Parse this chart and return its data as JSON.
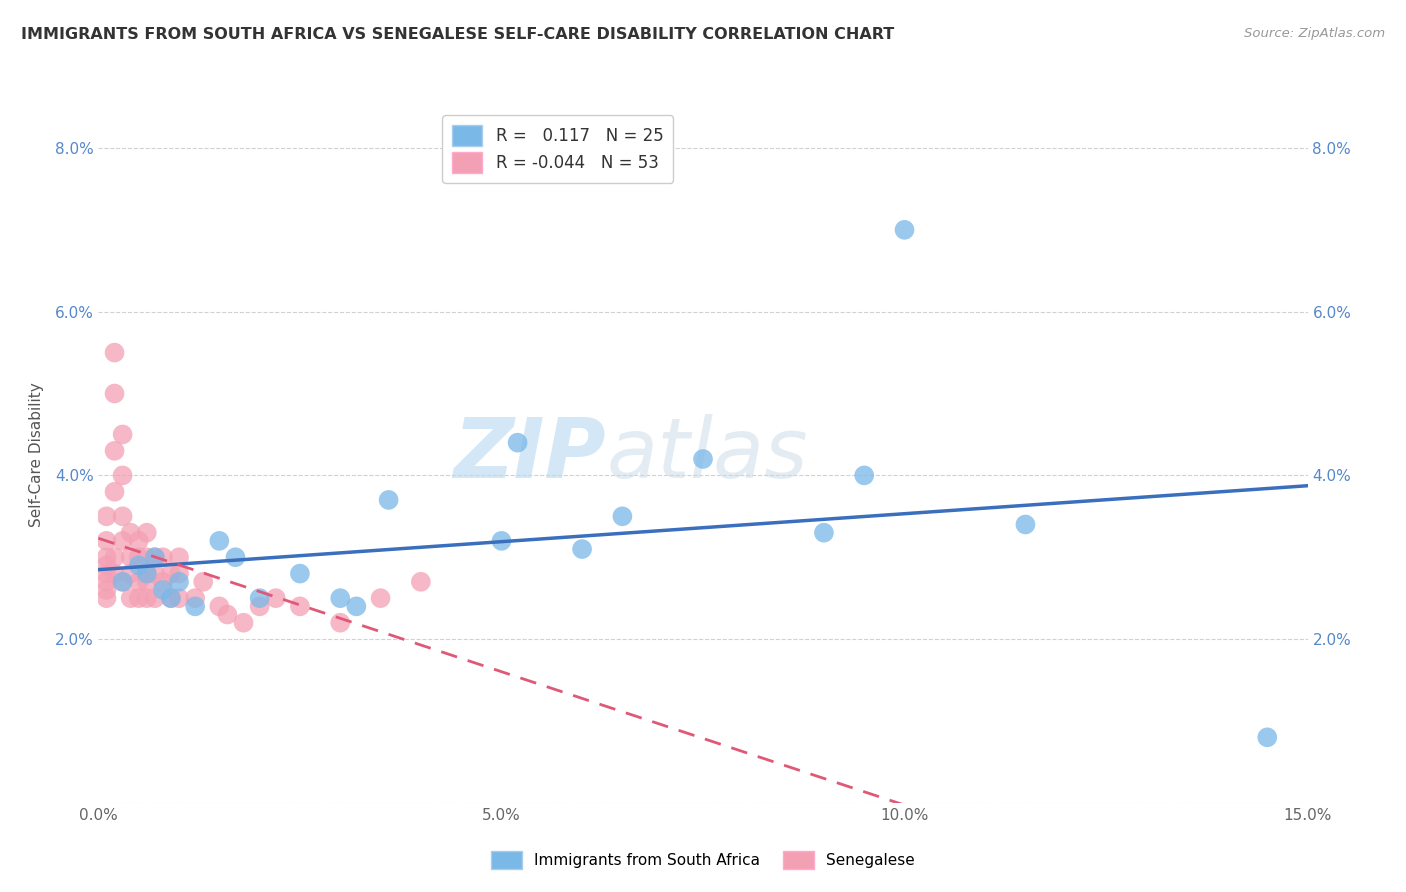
{
  "title": "IMMIGRANTS FROM SOUTH AFRICA VS SENEGALESE SELF-CARE DISABILITY CORRELATION CHART",
  "source": "Source: ZipAtlas.com",
  "ylabel": "Self-Care Disability",
  "xlim": [
    0.0,
    0.15
  ],
  "ylim": [
    0.0,
    0.085
  ],
  "xticks": [
    0.0,
    0.05,
    0.1,
    0.15
  ],
  "xtick_labels": [
    "0.0%",
    "5.0%",
    "10.0%",
    "15.0%"
  ],
  "yticks": [
    0.0,
    0.02,
    0.04,
    0.06,
    0.08
  ],
  "ytick_labels": [
    "",
    "2.0%",
    "4.0%",
    "6.0%",
    "8.0%"
  ],
  "r_blue": 0.117,
  "n_blue": 25,
  "r_pink": -0.044,
  "n_pink": 53,
  "blue_color": "#7ab8e8",
  "pink_color": "#f4a0b4",
  "blue_line_color": "#3a6fbe",
  "pink_line_color": "#e05878",
  "legend_label_blue": "Immigrants from South Africa",
  "legend_label_pink": "Senegalese",
  "watermark_zip": "ZIP",
  "watermark_atlas": "atlas",
  "blue_x": [
    0.003,
    0.005,
    0.006,
    0.007,
    0.008,
    0.009,
    0.01,
    0.012,
    0.015,
    0.017,
    0.02,
    0.025,
    0.03,
    0.032,
    0.036,
    0.05,
    0.052,
    0.06,
    0.065,
    0.075,
    0.09,
    0.095,
    0.1,
    0.115,
    0.145
  ],
  "blue_y": [
    0.027,
    0.029,
    0.028,
    0.03,
    0.026,
    0.025,
    0.027,
    0.024,
    0.032,
    0.03,
    0.025,
    0.028,
    0.025,
    0.024,
    0.037,
    0.032,
    0.044,
    0.031,
    0.035,
    0.042,
    0.033,
    0.04,
    0.07,
    0.034,
    0.008
  ],
  "pink_x": [
    0.001,
    0.001,
    0.001,
    0.001,
    0.001,
    0.001,
    0.001,
    0.001,
    0.002,
    0.002,
    0.002,
    0.002,
    0.002,
    0.002,
    0.003,
    0.003,
    0.003,
    0.003,
    0.003,
    0.004,
    0.004,
    0.004,
    0.004,
    0.005,
    0.005,
    0.005,
    0.005,
    0.006,
    0.006,
    0.006,
    0.006,
    0.006,
    0.007,
    0.007,
    0.007,
    0.008,
    0.008,
    0.009,
    0.009,
    0.01,
    0.01,
    0.01,
    0.012,
    0.013,
    0.015,
    0.016,
    0.018,
    0.02,
    0.022,
    0.025,
    0.03,
    0.035,
    0.04
  ],
  "pink_y": [
    0.028,
    0.03,
    0.027,
    0.032,
    0.025,
    0.035,
    0.029,
    0.026,
    0.038,
    0.043,
    0.05,
    0.055,
    0.028,
    0.03,
    0.032,
    0.035,
    0.04,
    0.045,
    0.027,
    0.028,
    0.03,
    0.033,
    0.025,
    0.03,
    0.027,
    0.025,
    0.032,
    0.027,
    0.03,
    0.033,
    0.025,
    0.028,
    0.028,
    0.025,
    0.03,
    0.03,
    0.027,
    0.025,
    0.028,
    0.025,
    0.028,
    0.03,
    0.025,
    0.027,
    0.024,
    0.023,
    0.022,
    0.024,
    0.025,
    0.024,
    0.022,
    0.025,
    0.027
  ]
}
